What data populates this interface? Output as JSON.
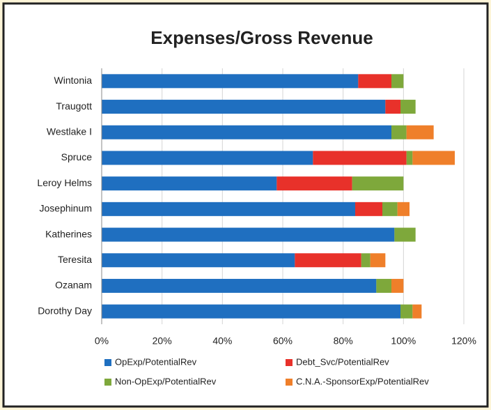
{
  "chart_data": {
    "type": "stacked_barh",
    "title": "Expenses/Gross Revenue",
    "categories": [
      "Wintonia",
      "Traugott",
      "Westlake I",
      "Spruce",
      "Leroy Helms",
      "Josephinum",
      "Katherines",
      "Teresita",
      "Ozanam",
      "Dorothy Day"
    ],
    "series": [
      {
        "name": "OpExp/PotentialRev",
        "color": "#1f6fc0",
        "values": [
          85,
          94,
          96,
          70,
          58,
          84,
          97,
          64,
          91,
          99
        ]
      },
      {
        "name": "Debt_Svc/PotentialRev",
        "color": "#e8312a",
        "values": [
          11,
          5,
          0,
          31,
          25,
          9,
          0,
          22,
          0,
          0
        ]
      },
      {
        "name": "Non-OpExp/PotentialRev",
        "color": "#7ea83b",
        "values": [
          4,
          5,
          5,
          2,
          17,
          5,
          7,
          3,
          5,
          4
        ]
      },
      {
        "name": "C.N.A.-SponsorExp/PotentialRev",
        "color": "#ef7f2a",
        "values": [
          0,
          0,
          9,
          14,
          0,
          4,
          0,
          5,
          4,
          3
        ]
      }
    ],
    "xlim": [
      0,
      120
    ],
    "xticks": [
      {
        "value": 0,
        "label": "0%"
      },
      {
        "value": 20,
        "label": "20%"
      },
      {
        "value": 40,
        "label": "40%"
      },
      {
        "value": 60,
        "label": "60%"
      },
      {
        "value": 80,
        "label": "80%"
      },
      {
        "value": 100,
        "label": "100%"
      },
      {
        "value": 120,
        "label": "120%"
      }
    ],
    "grid": true
  }
}
